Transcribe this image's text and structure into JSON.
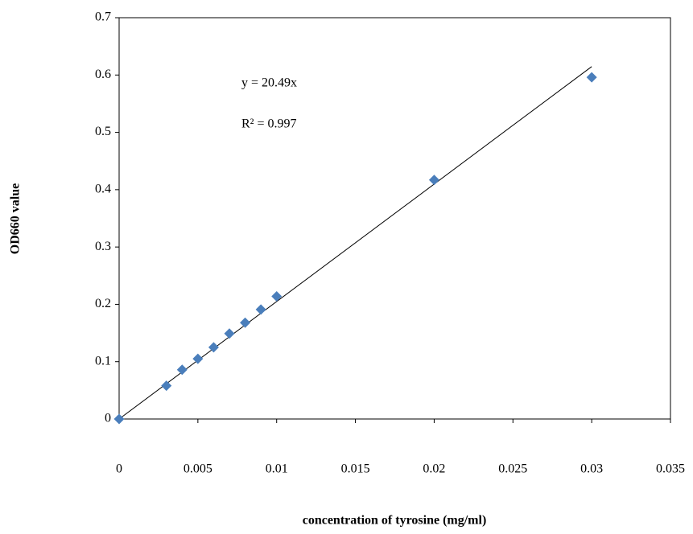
{
  "chart_data": {
    "type": "scatter",
    "x_label": "concentration of tyrosine (mg/ml)",
    "y_label": "OD660 value",
    "annotations": [
      "y = 20.49x",
      "R² = 0.997"
    ],
    "x": [
      0,
      0.003,
      0.004,
      0.005,
      0.006,
      0.007,
      0.008,
      0.009,
      0.01,
      0.02,
      0.03
    ],
    "values": [
      0,
      0.058,
      0.086,
      0.105,
      0.125,
      0.149,
      0.168,
      0.191,
      0.214,
      0.417,
      0.596
    ],
    "color": "#4a7ebb",
    "trendline": {
      "x": [
        0,
        0.03
      ],
      "y": [
        0,
        0.6147
      ],
      "color": "#000000"
    },
    "xlim": [
      0,
      0.035
    ],
    "xticks": [
      0,
      0.005,
      0.01,
      0.015,
      0.02,
      0.025,
      0.03,
      0.035
    ],
    "ylim": [
      0,
      0.7
    ],
    "yticks": [
      0,
      0.1,
      0.2,
      0.3,
      0.4,
      0.5,
      0.6,
      0.7
    ],
    "grid": false
  }
}
